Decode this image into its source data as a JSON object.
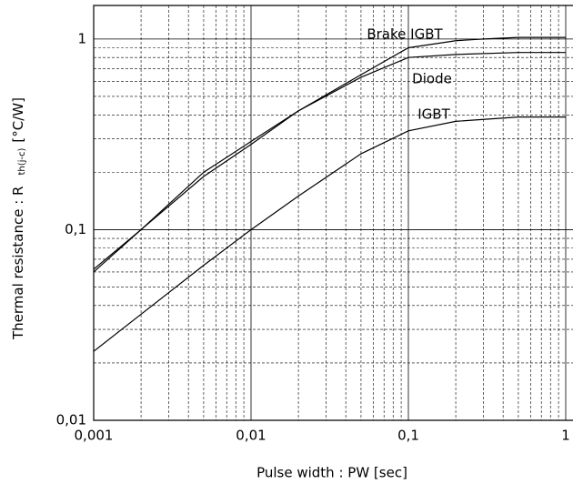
{
  "chart_data": {
    "type": "line",
    "xlabel": "Pulse width : PW [sec]",
    "ylabel": "Thermal resistance : R",
    "ylabel_sub": "th(j-c)",
    "ylabel_unit": "[°C/W]",
    "log_x": true,
    "log_y": true,
    "grid": true,
    "xlim": [
      0.001,
      1
    ],
    "ylim": [
      0.01,
      1.5
    ],
    "xticks": [
      {
        "value": 0.001,
        "label": "0,001"
      },
      {
        "value": 0.01,
        "label": "0,01"
      },
      {
        "value": 0.1,
        "label": "0,1"
      },
      1
    ],
    "yticks": [
      {
        "value": 0.01,
        "label": "0,01"
      },
      {
        "value": 0.1,
        "label": "0,1"
      },
      1
    ],
    "xminorticks": [
      0.002,
      0.003,
      0.004,
      0.005,
      0.006,
      0.007,
      0.008,
      0.009,
      0.02,
      0.03,
      0.04,
      0.05,
      0.06,
      0.07,
      0.08,
      0.09,
      0.2,
      0.3,
      0.4,
      0.5,
      0.6,
      0.7,
      0.8,
      0.9
    ],
    "yminorticks": [
      0.02,
      0.03,
      0.04,
      0.05,
      0.06,
      0.07,
      0.08,
      0.09,
      0.2,
      0.3,
      0.4,
      0.5,
      0.6,
      0.7,
      0.8,
      0.9
    ],
    "series": [
      {
        "name": "Brake IGBT",
        "color": "#000000",
        "x": [
          0.001,
          0.002,
          0.005,
          0.01,
          0.02,
          0.05,
          0.1,
          0.2,
          0.3,
          0.5,
          1
        ],
        "values": [
          0.06,
          0.1,
          0.2,
          0.29,
          0.42,
          0.65,
          0.9,
          0.98,
          1.0,
          1.02,
          1.02
        ]
      },
      {
        "name": "Diode",
        "color": "#000000",
        "x": [
          0.001,
          0.002,
          0.005,
          0.01,
          0.02,
          0.05,
          0.1,
          0.2,
          0.5,
          1
        ],
        "values": [
          0.062,
          0.1,
          0.19,
          0.28,
          0.42,
          0.63,
          0.8,
          0.83,
          0.85,
          0.85
        ]
      },
      {
        "name": "IGBT",
        "color": "#000000",
        "x": [
          0.001,
          0.002,
          0.005,
          0.01,
          0.02,
          0.05,
          0.1,
          0.2,
          0.5,
          1
        ],
        "values": [
          0.023,
          0.036,
          0.065,
          0.1,
          0.15,
          0.25,
          0.33,
          0.37,
          0.39,
          0.39
        ]
      }
    ]
  }
}
